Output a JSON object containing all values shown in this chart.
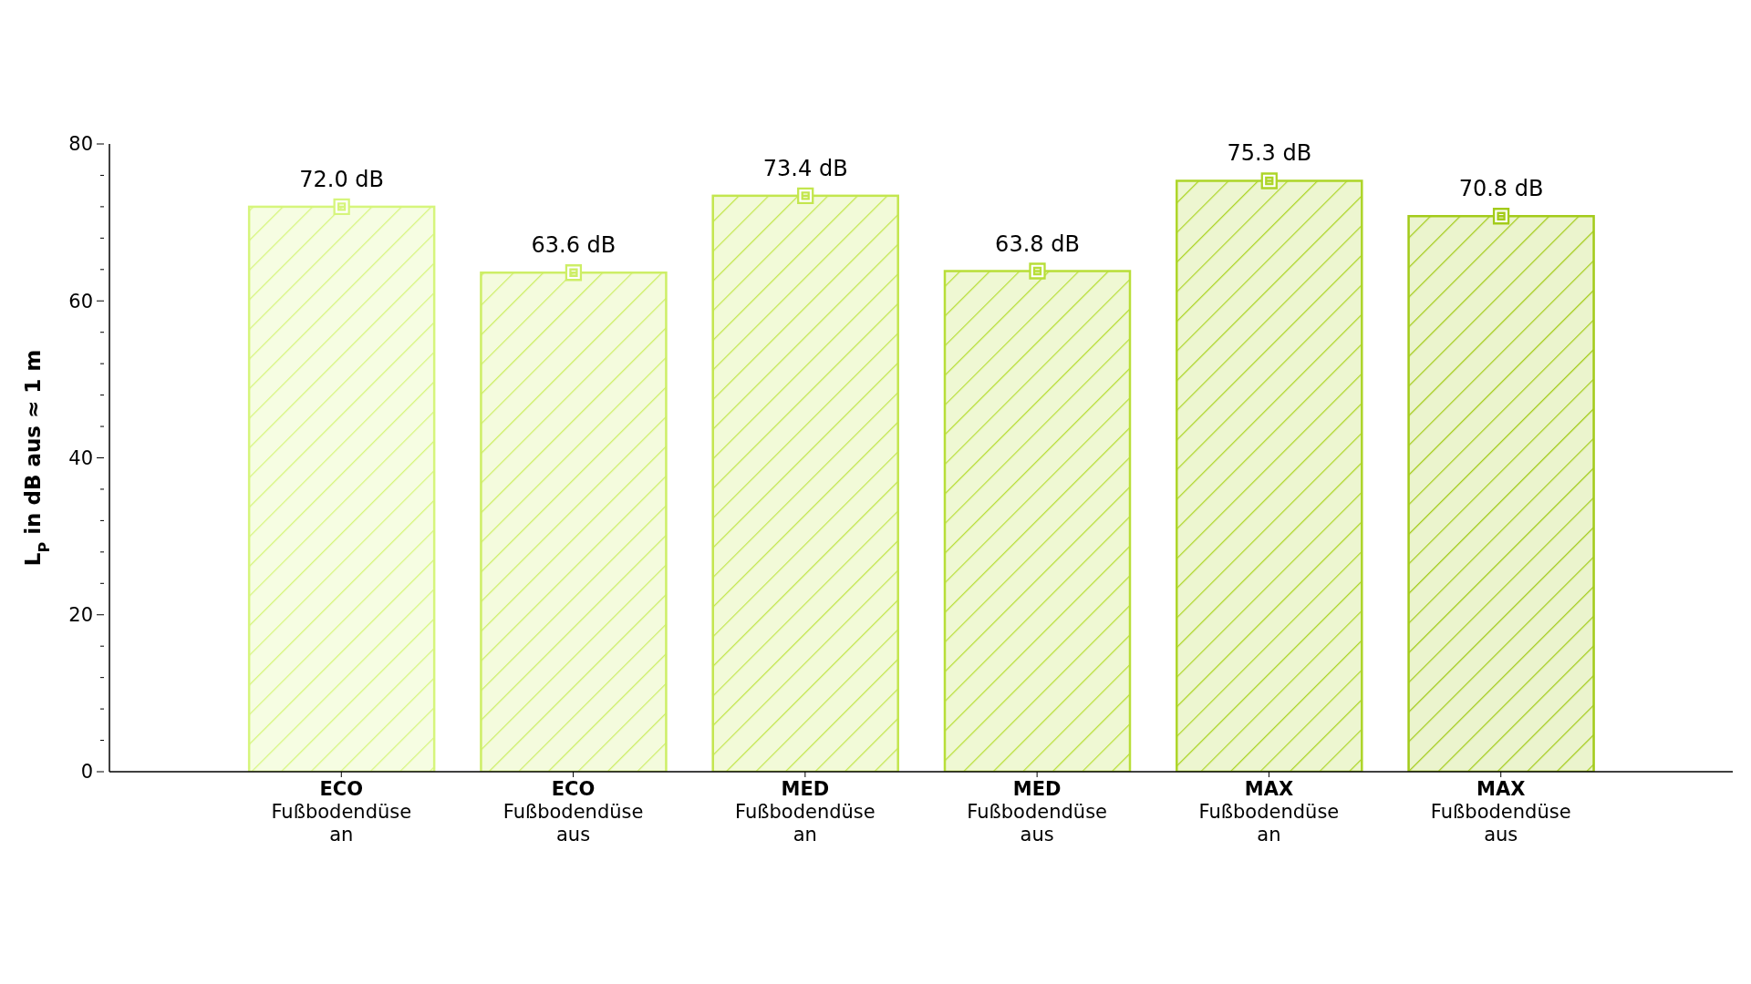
{
  "chart_data": {
    "type": "bar",
    "ylabel": "L$_{P}$ in dB aus ≈ 1 m",
    "categories": [
      "ECO\nFußbodendüse\nan",
      "ECO\nFußbodendüse\naus",
      "MED\nFußbodendüse\nan",
      "MED\nFußbodendüse\naus",
      "MAX\nFußbodendüse\nan",
      "MAX\nFußbodendüse\naus"
    ],
    "values": [
      72.0,
      63.6,
      73.4,
      63.8,
      75.3,
      70.8
    ],
    "value_labels": [
      "72.0 dB",
      "63.6 dB",
      "73.4 dB",
      "63.8 dB",
      "75.3 dB",
      "70.8 dB"
    ],
    "colors": [
      "#d6f57c",
      "#cdee66",
      "#c3e64e",
      "#b8de38",
      "#add528",
      "#a3cb1a"
    ],
    "ylim": [
      0,
      80
    ],
    "yticks": [
      0,
      {
        "value": 4,
        "label": null
      },
      {
        "value": 8,
        "label": null
      },
      {
        "value": 12,
        "label": null
      },
      {
        "value": 16,
        "label": null
      },
      20,
      {
        "value": 24,
        "label": null
      },
      {
        "value": 28,
        "label": null
      },
      {
        "value": 32,
        "label": null
      },
      {
        "value": 36,
        "label": null
      },
      40,
      {
        "value": 44,
        "label": null
      },
      {
        "value": 48,
        "label": null
      },
      {
        "value": 52,
        "label": null
      },
      {
        "value": 56,
        "label": null
      },
      60,
      {
        "value": 64,
        "label": null
      },
      {
        "value": 68,
        "label": null
      },
      {
        "value": 72,
        "label": null
      },
      {
        "value": 76,
        "label": null
      },
      80
    ],
    "marker": "square",
    "grid": false,
    "legend": false
  }
}
